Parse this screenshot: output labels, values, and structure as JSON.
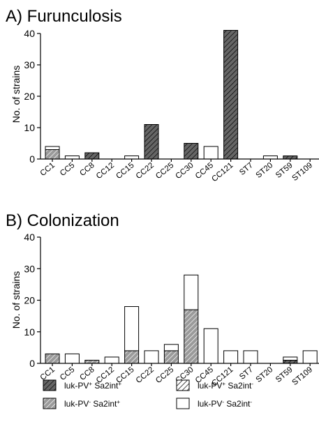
{
  "chart_data": [
    {
      "type": "bar",
      "stacked": true,
      "title": "A) Furunculosis",
      "ylabel": "No. of strains",
      "ylim": [
        0,
        40
      ],
      "yticks": [
        0,
        10,
        20,
        30,
        40
      ],
      "categories": [
        "CC1",
        "CC5",
        "CC8",
        "CC12",
        "CC15",
        "CC22",
        "CC25",
        "CC30",
        "CC45",
        "CC121",
        "ST7",
        "ST20",
        "ST59",
        "ST109"
      ],
      "series": [
        {
          "key": "pp",
          "values": [
            0,
            0,
            2,
            0,
            0,
            11,
            0,
            5,
            0,
            41,
            0,
            0,
            1,
            0
          ]
        },
        {
          "key": "mp",
          "values": [
            3,
            0,
            0,
            0,
            0,
            0,
            0,
            0,
            0,
            0,
            0,
            0,
            0,
            0
          ]
        },
        {
          "key": "pm",
          "values": [
            0,
            0,
            0,
            0,
            0,
            0,
            0,
            0,
            0,
            0,
            0,
            0,
            0,
            0
          ]
        },
        {
          "key": "mm",
          "values": [
            1,
            1,
            0,
            0,
            1,
            0,
            0,
            0,
            4,
            0,
            0,
            1,
            0,
            0
          ]
        }
      ]
    },
    {
      "type": "bar",
      "stacked": true,
      "title": "B) Colonization",
      "ylabel": "No. of strains",
      "ylim": [
        0,
        40
      ],
      "yticks": [
        0,
        10,
        20,
        30,
        40
      ],
      "categories": [
        "CC1",
        "CC5",
        "CC8",
        "CC12",
        "CC15",
        "CC22",
        "CC25",
        "CC30",
        "CC45",
        "CC121",
        "ST7",
        "ST20",
        "ST59",
        "ST109"
      ],
      "series": [
        {
          "key": "pp",
          "values": [
            0,
            0,
            0,
            0,
            0,
            0,
            0,
            0,
            0,
            0,
            0,
            0,
            1,
            0
          ]
        },
        {
          "key": "mp",
          "values": [
            3,
            0,
            1,
            0,
            4,
            0,
            4,
            17,
            0,
            0,
            0,
            0,
            0,
            0
          ]
        },
        {
          "key": "pm",
          "values": [
            0,
            0,
            0,
            0,
            0,
            0,
            0,
            0,
            0,
            0,
            0,
            0,
            0,
            0
          ]
        },
        {
          "key": "mm",
          "values": [
            0,
            3,
            0,
            2,
            14,
            4,
            2,
            11,
            11,
            4,
            4,
            0,
            1,
            4
          ]
        }
      ]
    }
  ],
  "legend": [
    {
      "key": "pp",
      "text": "luk-PV",
      "sup1": "+",
      "mid": " Sa2int",
      "sup2": "+",
      "fill": "#666666",
      "hatch": true
    },
    {
      "key": "pm",
      "text": "luk-PV",
      "sup1": "+",
      "mid": " Sa2int",
      "sup2": "-",
      "fill": "#ffffff",
      "hatch": true
    },
    {
      "key": "mp",
      "text": "luk-PV",
      "sup1": "-",
      "mid": " Sa2int",
      "sup2": "+",
      "fill": "#999999",
      "hatch": true
    },
    {
      "key": "mm",
      "text": "luk-PV",
      "sup1": "-",
      "mid": " Sa2int",
      "sup2": "-",
      "fill": "#ffffff",
      "hatch": false
    }
  ]
}
